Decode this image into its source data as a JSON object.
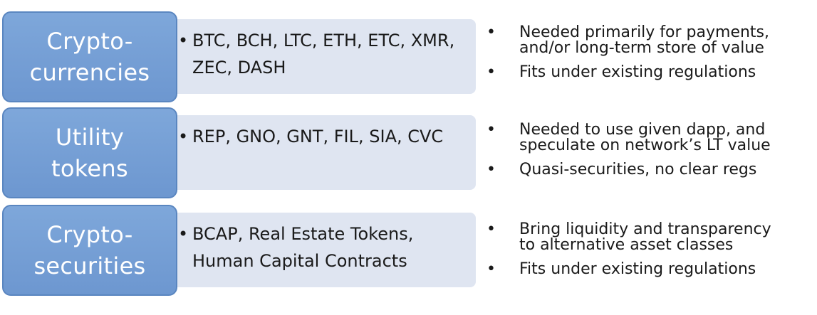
{
  "rows": [
    {
      "category": "Crypto-\ncurrencies",
      "examples": "BTC, BCH, LTC, ETH, ETC, XMR, ZEC, DASH",
      "points": [
        "Needed primarily for payments,\nand/or long-term store of value",
        "Fits under existing regulations"
      ]
    },
    {
      "category": "Utility\ntokens",
      "examples": "REP, GNO, GNT, FIL, SIA, CVC",
      "points": [
        "Needed to use given dapp, and\nspeculate on network’s LT value",
        "Quasi-securities, no clear regs"
      ]
    },
    {
      "category": "Crypto-\nsecurities",
      "examples": "BCAP, Real Estate Tokens, Human Capital Contracts",
      "points": [
        "Bring liquidity and transparency\nto alternative asset classes",
        "Fits under existing regulations"
      ]
    }
  ],
  "bullet_examples": "•",
  "bullet_points": "•",
  "colors": {
    "category_fill": "#7ea7da",
    "category_border": "#5a86c0",
    "examples_fill": "#dfe5f1"
  }
}
